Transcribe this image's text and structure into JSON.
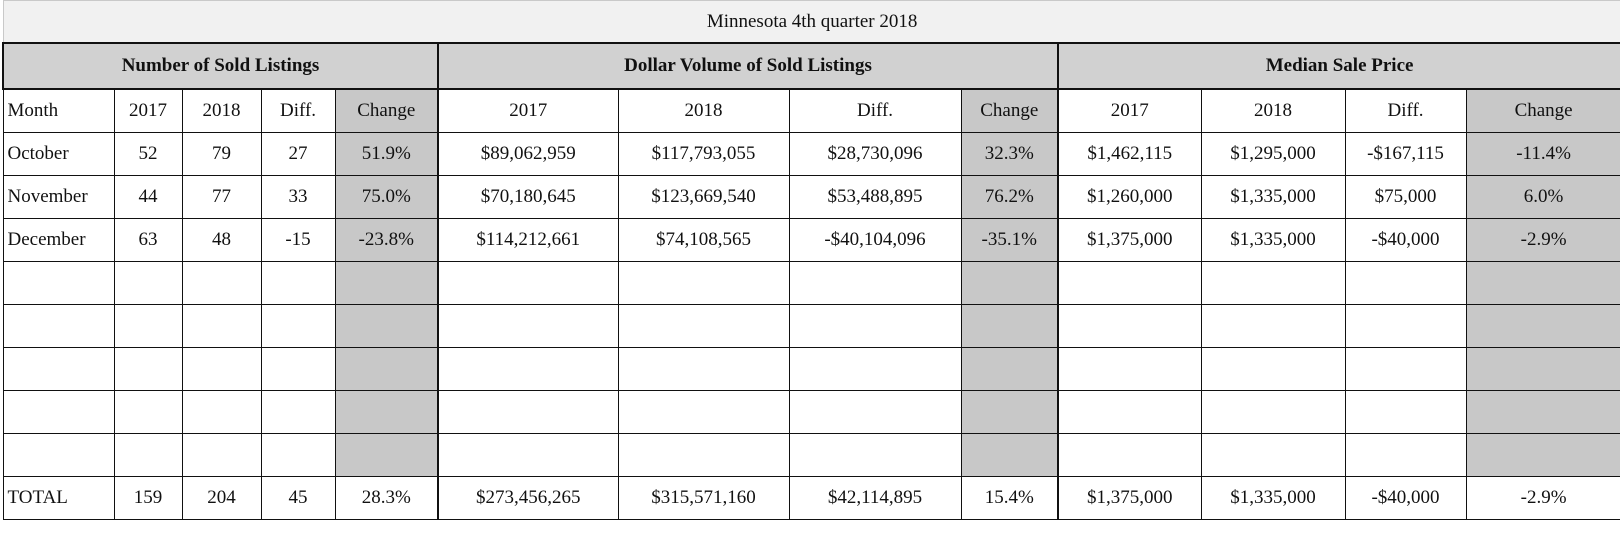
{
  "title": "Minnesota 4th quarter 2018",
  "groups": {
    "sold": "Number of Sold Listings",
    "volume": "Dollar Volume of Sold Listings",
    "median": "Median Sale Price"
  },
  "columns": [
    "Month",
    "2017",
    "2018",
    "Diff.",
    "Change",
    "2017",
    "2018",
    "Diff.",
    "Change",
    "2017",
    "2018",
    "Diff.",
    "Change"
  ],
  "rows": [
    [
      "October",
      "52",
      "79",
      "27",
      "51.9%",
      "$89,062,959",
      "$117,793,055",
      "$28,730,096",
      "32.3%",
      "$1,462,115",
      "$1,295,000",
      "-$167,115",
      "-11.4%"
    ],
    [
      "November",
      "44",
      "77",
      "33",
      "75.0%",
      "$70,180,645",
      "$123,669,540",
      "$53,488,895",
      "76.2%",
      "$1,260,000",
      "$1,335,000",
      "$75,000",
      "6.0%"
    ],
    [
      "December",
      "63",
      "48",
      "-15",
      "-23.8%",
      "$114,212,661",
      "$74,108,565",
      "-$40,104,096",
      "-35.1%",
      "$1,375,000",
      "$1,335,000",
      "-$40,000",
      "-2.9%"
    ],
    [
      "",
      "",
      "",
      "",
      "",
      "",
      "",
      "",
      "",
      "",
      "",
      "",
      ""
    ],
    [
      "",
      "",
      "",
      "",
      "",
      "",
      "",
      "",
      "",
      "",
      "",
      "",
      ""
    ],
    [
      "",
      "",
      "",
      "",
      "",
      "",
      "",
      "",
      "",
      "",
      "",
      "",
      ""
    ],
    [
      "",
      "",
      "",
      "",
      "",
      "",
      "",
      "",
      "",
      "",
      "",
      "",
      ""
    ],
    [
      "",
      "",
      "",
      "",
      "",
      "",
      "",
      "",
      "",
      "",
      "",
      "",
      ""
    ]
  ],
  "total": [
    "TOTAL",
    "159",
    "204",
    "45",
    "28.3%",
    "$273,456,265",
    "$315,571,160",
    "$42,114,895",
    "15.4%",
    "$1,375,000",
    "$1,335,000",
    "-$40,000",
    "-2.9%"
  ]
}
